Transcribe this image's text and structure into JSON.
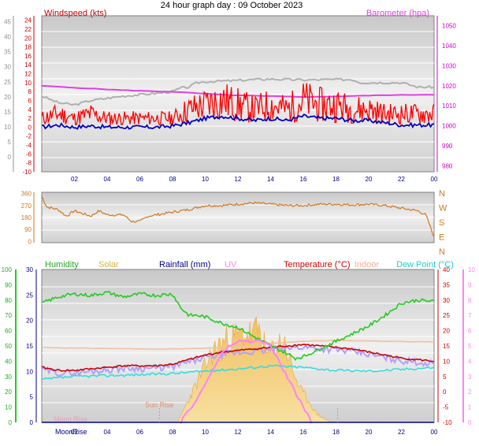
{
  "title": "24 hour graph day : 09 October 2023",
  "x_ticks": [
    "02",
    "04",
    "06",
    "08",
    "10",
    "12",
    "14",
    "16",
    "18",
    "20",
    "22",
    "00"
  ],
  "chart_data": [
    {
      "type": "line",
      "labels": {
        "left": "Windspeed (kts)",
        "right": "Barometer (hpa)"
      },
      "left_axis_outer": {
        "ticks": [
          0,
          5,
          10,
          15,
          20,
          25,
          30,
          35,
          40,
          45
        ],
        "ylim": [
          -5,
          47
        ]
      },
      "left_axis_inner": {
        "ticks": [
          -10,
          -8,
          -6,
          -4,
          -2,
          0,
          2,
          4,
          6,
          8,
          10,
          12,
          14,
          16,
          18,
          20,
          22,
          24
        ],
        "ylim": [
          -10,
          25
        ]
      },
      "right_axis": {
        "ticks": [
          980,
          990,
          1000,
          1010,
          1020,
          1030,
          1040,
          1050
        ],
        "ylim": [
          977,
          1055
        ]
      },
      "colors": {
        "barometer": "#e040e0",
        "gust": "#ff0000",
        "wind": "#0000c0",
        "wind_bg": "#b0b0b0"
      },
      "series": {
        "barometer": {
          "x": [
            0,
            1,
            2,
            3,
            4,
            5,
            6,
            7,
            8,
            9,
            10,
            11,
            12,
            13,
            14,
            15,
            16,
            17,
            18,
            19,
            20,
            21,
            22,
            23,
            24
          ],
          "values": [
            1020,
            1019.5,
            1019,
            1018.6,
            1018.2,
            1017.8,
            1017.5,
            1017.2,
            1017,
            1016.5,
            1016,
            1015.5,
            1015.2,
            1015,
            1014.8,
            1014.6,
            1014.4,
            1014.5,
            1014.7,
            1014.9,
            1015.1,
            1015.3,
            1015.4,
            1015.5,
            1015.6
          ]
        },
        "wind_bg": {
          "x": [
            0,
            1,
            2,
            3,
            4,
            5,
            6,
            7,
            8,
            8.5,
            9,
            9.5,
            10,
            12,
            13,
            14,
            16,
            18,
            19,
            19.5,
            20,
            21,
            22,
            23,
            24
          ],
          "values": [
            7,
            5.5,
            5,
            6,
            6.5,
            7,
            7.3,
            7.6,
            8,
            8.8,
            9,
            10,
            10.2,
            10.5,
            10.7,
            10.8,
            10.6,
            10.7,
            10.7,
            10,
            10,
            10,
            10,
            9,
            9
          ]
        },
        "gust": {
          "x": [
            0,
            1,
            2,
            3,
            4,
            5,
            6,
            7,
            8,
            9,
            10,
            11,
            12,
            13,
            14,
            15,
            16,
            17,
            18,
            19,
            20,
            21,
            22,
            23,
            24
          ],
          "values": [
            2,
            3,
            2,
            3,
            2,
            2,
            2,
            2,
            2,
            4,
            5,
            6,
            5,
            4,
            5,
            4,
            6,
            5,
            5,
            4,
            4,
            3,
            3,
            3,
            3
          ]
        },
        "wind": {
          "x": [
            0,
            1,
            2,
            3,
            4,
            5,
            6,
            7,
            8,
            9,
            10,
            11,
            12,
            13,
            14,
            15,
            16,
            17,
            18,
            19,
            20,
            21,
            22,
            23,
            24
          ],
          "values": [
            0,
            0.5,
            0,
            0.3,
            0,
            0,
            0,
            0,
            0.3,
            1,
            2,
            2.5,
            2,
            1.5,
            2,
            1.5,
            2.5,
            2,
            2,
            1.5,
            1.5,
            1,
            0.5,
            0.5,
            0.5
          ]
        }
      }
    },
    {
      "type": "line",
      "left_axis": {
        "ticks": [
          0,
          90,
          180,
          270,
          360
        ],
        "ylim": [
          -10,
          370
        ]
      },
      "right_axis": {
        "ticks": [
          "N",
          "W",
          "S",
          "E",
          "N"
        ]
      },
      "colors": {
        "direction": "#d07820"
      },
      "series": {
        "direction": {
          "x": [
            0,
            0.3,
            1,
            1.5,
            2,
            3,
            3.5,
            4,
            5,
            5.5,
            6,
            6.5,
            7,
            7.5,
            8,
            9,
            10,
            11,
            12,
            13,
            14,
            15,
            16,
            17,
            18,
            19,
            20,
            21,
            22,
            23,
            23.5,
            24
          ],
          "values": [
            340,
            260,
            240,
            190,
            230,
            190,
            230,
            200,
            200,
            150,
            150,
            190,
            200,
            210,
            220,
            240,
            270,
            270,
            280,
            290,
            280,
            270,
            270,
            280,
            280,
            275,
            280,
            270,
            250,
            230,
            200,
            30
          ]
        }
      }
    },
    {
      "type": "line",
      "labels": {
        "humidity": "Humidity",
        "solar": "Solar",
        "rainfall": "Rainfall (mm)",
        "uv": "UV",
        "temperature": "Temperature (°C)",
        "indoor": "Indoor",
        "dewpoint": "Dew Point (°C)"
      },
      "annotations": {
        "sunrise": "Sun Rise",
        "moonrise": "Moon Rise",
        "moonrise_axis": "MoonRise"
      },
      "humidity_axis": {
        "ticks": [
          0,
          10,
          20,
          30,
          40,
          50,
          60,
          70,
          80,
          90,
          100
        ],
        "ylim": [
          0,
          100
        ]
      },
      "rain_axis": {
        "ticks": [
          0,
          5,
          10,
          15,
          20,
          25,
          30
        ],
        "ylim": [
          0,
          30
        ]
      },
      "temp_axis": {
        "ticks": [
          -10,
          -5,
          0,
          5,
          10,
          15,
          20,
          25,
          30,
          35,
          40
        ],
        "ylim": [
          -10,
          40
        ]
      },
      "uv_axis": {
        "ticks": [
          0,
          1,
          2,
          3,
          4,
          5,
          6,
          7,
          8,
          9,
          10
        ],
        "ylim": [
          0,
          10
        ]
      },
      "colors": {
        "humidity": "#22cc22",
        "solar": "#f0c060",
        "rainfall": "#00008b",
        "uv": "#ff80ff",
        "temperature": "#cc0000",
        "indoor": "#f0c0a0",
        "dewpoint": "#33dddd",
        "lavender": "#b0a0ff"
      },
      "series": {
        "humidity": {
          "x": [
            0,
            1,
            2,
            3,
            4,
            5,
            6,
            7,
            8,
            8.5,
            9,
            9.5,
            10,
            11,
            12,
            13,
            14,
            15,
            15.5,
            16,
            17,
            18,
            19,
            20,
            21,
            22,
            23,
            24
          ],
          "values": [
            78,
            82,
            84,
            83,
            85,
            82,
            84,
            83,
            84,
            75,
            70,
            70,
            69,
            65,
            62,
            56,
            50,
            45,
            42,
            43,
            48,
            53,
            58,
            63,
            70,
            78,
            80,
            79
          ]
        },
        "solar": {
          "x": [
            8.3,
            8.8,
            9.3,
            9.8,
            10.3,
            10.8,
            11.3,
            11.8,
            12.3,
            12.8,
            13.3,
            13.8,
            14.3,
            14.8,
            15.3,
            15.8,
            16.3,
            16.8,
            17.3,
            17.8
          ],
          "values": [
            0,
            150,
            300,
            450,
            600,
            700,
            750,
            780,
            790,
            800,
            850,
            600,
            700,
            750,
            500,
            300,
            200,
            80,
            30,
            0
          ]
        },
        "uv": {
          "x": [
            8.5,
            9,
            9.5,
            10,
            10.5,
            11,
            11.5,
            12,
            12.5,
            13,
            13.5,
            14,
            14.5,
            15,
            15.5,
            16,
            16.5
          ],
          "values": [
            0,
            0.8,
            1.5,
            2.5,
            3.5,
            4.5,
            5,
            5.3,
            5.3,
            5.3,
            5.3,
            5,
            4,
            3,
            2,
            1,
            0
          ]
        },
        "temperature": {
          "x": [
            0,
            1,
            2,
            3,
            4,
            5,
            6,
            7,
            8,
            9,
            10,
            11,
            12,
            13,
            14,
            15,
            16,
            17,
            18,
            19,
            20,
            21,
            22,
            23,
            24
          ],
          "values": [
            8,
            7,
            7,
            7.5,
            8,
            8.5,
            8.5,
            8.5,
            9,
            10.5,
            12,
            13,
            13.5,
            14,
            14.5,
            15,
            15.5,
            15,
            14.5,
            14,
            13,
            12,
            11,
            10.5,
            10
          ]
        },
        "indoor": {
          "x": [
            0,
            2,
            4,
            6,
            8,
            10,
            12,
            14,
            16,
            18,
            20,
            22,
            24
          ],
          "values": [
            14.5,
            14.3,
            14.2,
            14,
            14,
            14.2,
            14.8,
            15.8,
            16.5,
            16.8,
            16.6,
            16.5,
            16.3
          ]
        },
        "dewpoint": {
          "x": [
            0,
            2,
            4,
            6,
            8,
            10,
            12,
            14,
            16,
            18,
            20,
            22,
            24
          ],
          "values": [
            4,
            5,
            5.3,
            5.6,
            6,
            6.8,
            7.5,
            8.5,
            8,
            7,
            6.8,
            7.3,
            8
          ]
        },
        "rainfall": {
          "x": [
            0,
            24
          ],
          "values": [
            0,
            0
          ]
        }
      },
      "markers": {
        "sunrise_x": 7.2,
        "sunset_x": 18.1
      }
    }
  ]
}
